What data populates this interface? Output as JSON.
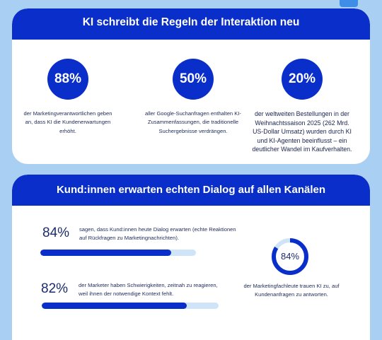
{
  "section1": {
    "title": "KI schreibt die Regeln der Interaktion neu",
    "stats": [
      {
        "value": "88%",
        "text": "der Marketingverantwortlichen geben an, dass KI die Kundenerwartungen erhöht."
      },
      {
        "value": "50%",
        "text": "aller Google-Suchanfragen enthalten KI-Zusammenfassungen, die traditionelle Suchergebnisse verdrängen."
      },
      {
        "value": "20%",
        "text": "der weltweiten Bestellungen in der Weihnachtssaison 2025 (262 Mrd. US-Dollar Umsatz) wurden durch KI und KI-Agenten beeinflusst – ein deutlicher Wandel im Kaufverhalten."
      }
    ]
  },
  "section2": {
    "title": "Kund:innen erwarten echten Dialog auf allen Kanälen",
    "rows": [
      {
        "value": "84%",
        "fraction": 0.84,
        "text": "sagen, dass Kund:innen heute Dialog erwarten (echte Reaktionen auf Rückfragen zu Marketingnachrichten)."
      },
      {
        "value": "82%",
        "fraction": 0.82,
        "text": "der Marketer haben Schwierigkeiten, zeitnah zu reagieren, weil ihnen der notwendige Kontext fehlt."
      }
    ],
    "donut": {
      "value": "84%",
      "fraction": 0.84,
      "text": "der Marketingfachleute trauen KI zu, auf Kundenanfragen zu antworten."
    }
  },
  "colors": {
    "primary": "#0a2ec9",
    "track": "#cfe5f7",
    "background": "#a9d0f2",
    "text": "#1e2a5a"
  }
}
